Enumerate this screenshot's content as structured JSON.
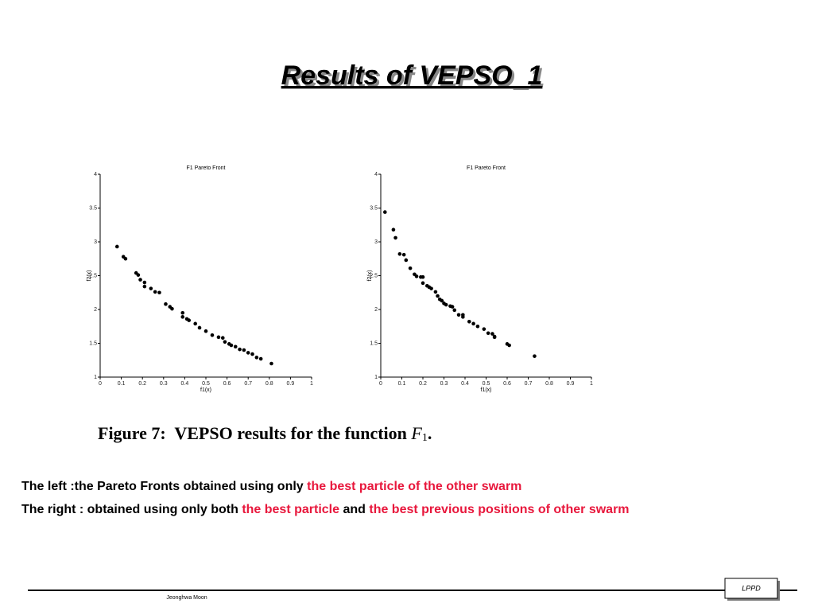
{
  "title": "Results of VEPSO_1",
  "chart_data": [
    {
      "type": "scatter",
      "title": "F1 Pareto Front",
      "x_label": "f1(x)",
      "y_label": "f2(x)",
      "color": "#000000",
      "x": [
        0.08,
        0.11,
        0.12,
        0.17,
        0.18,
        0.19,
        0.21,
        0.21,
        0.24,
        0.26,
        0.28,
        0.31,
        0.33,
        0.34,
        0.39,
        0.39,
        0.41,
        0.42,
        0.45,
        0.47,
        0.5,
        0.53,
        0.56,
        0.58,
        0.59,
        0.61,
        0.62,
        0.64,
        0.66,
        0.68,
        0.7,
        0.72,
        0.74,
        0.76,
        0.81
      ],
      "values": [
        2.93,
        2.78,
        2.75,
        2.54,
        2.51,
        2.44,
        2.4,
        2.34,
        2.31,
        2.26,
        2.25,
        2.08,
        2.04,
        2.01,
        1.95,
        1.89,
        1.86,
        1.84,
        1.79,
        1.73,
        1.68,
        1.62,
        1.59,
        1.58,
        1.52,
        1.49,
        1.47,
        1.45,
        1.41,
        1.4,
        1.36,
        1.34,
        1.29,
        1.27,
        1.2
      ],
      "xlim": [
        0,
        1
      ],
      "ylim": [
        1,
        4
      ],
      "xticks": [
        0,
        0.1,
        0.2,
        0.3,
        0.4,
        0.5,
        0.6,
        0.7,
        0.8,
        0.9,
        1
      ],
      "yticks": [
        1,
        1.5,
        2,
        2.5,
        3,
        3.5,
        4
      ]
    },
    {
      "type": "scatter",
      "title": "F1 Pareto Front",
      "x_label": "f1(x)",
      "y_label": "f2(x)",
      "color": "#000000",
      "x": [
        0.02,
        0.06,
        0.07,
        0.09,
        0.11,
        0.12,
        0.14,
        0.16,
        0.17,
        0.19,
        0.2,
        0.2,
        0.22,
        0.23,
        0.24,
        0.26,
        0.27,
        0.28,
        0.29,
        0.3,
        0.31,
        0.33,
        0.34,
        0.35,
        0.37,
        0.39,
        0.39,
        0.42,
        0.44,
        0.46,
        0.49,
        0.51,
        0.53,
        0.54,
        0.54,
        0.6,
        0.61,
        0.73
      ],
      "values": [
        3.44,
        3.18,
        3.06,
        2.82,
        2.81,
        2.73,
        2.61,
        2.52,
        2.49,
        2.48,
        2.48,
        2.39,
        2.35,
        2.33,
        2.31,
        2.26,
        2.2,
        2.15,
        2.13,
        2.09,
        2.07,
        2.05,
        2.04,
        1.99,
        1.92,
        1.92,
        1.89,
        1.82,
        1.79,
        1.75,
        1.71,
        1.65,
        1.64,
        1.6,
        1.59,
        1.49,
        1.47,
        1.31
      ],
      "xlim": [
        0,
        1
      ],
      "ylim": [
        1,
        4
      ],
      "xticks": [
        0,
        0.1,
        0.2,
        0.3,
        0.4,
        0.5,
        0.6,
        0.7,
        0.8,
        0.9,
        1
      ],
      "yticks": [
        1,
        1.5,
        2,
        2.5,
        3,
        3.5,
        4
      ]
    }
  ],
  "caption": {
    "prefix": "Figure 7:  VEPSO results for the function ",
    "symbol": "F",
    "subscript": "1",
    "suffix": "."
  },
  "lines": [
    [
      {
        "text": "The left :the Pareto Fronts obtained using only ",
        "color": "#000000"
      },
      {
        "text": "the best particle of the other swarm",
        "color": "#e8173c"
      }
    ],
    [
      {
        "text": "The right : obtained using only both ",
        "color": "#000000"
      },
      {
        "text": "the best particle",
        "color": "#e8173c"
      },
      {
        "text": " and ",
        "color": "#000000"
      },
      {
        "text": "the best previous positions of other swarm",
        "color": "#e8173c"
      }
    ]
  ],
  "footer": {
    "author": "Jeonghwa Moon",
    "badge": "LPPD"
  }
}
